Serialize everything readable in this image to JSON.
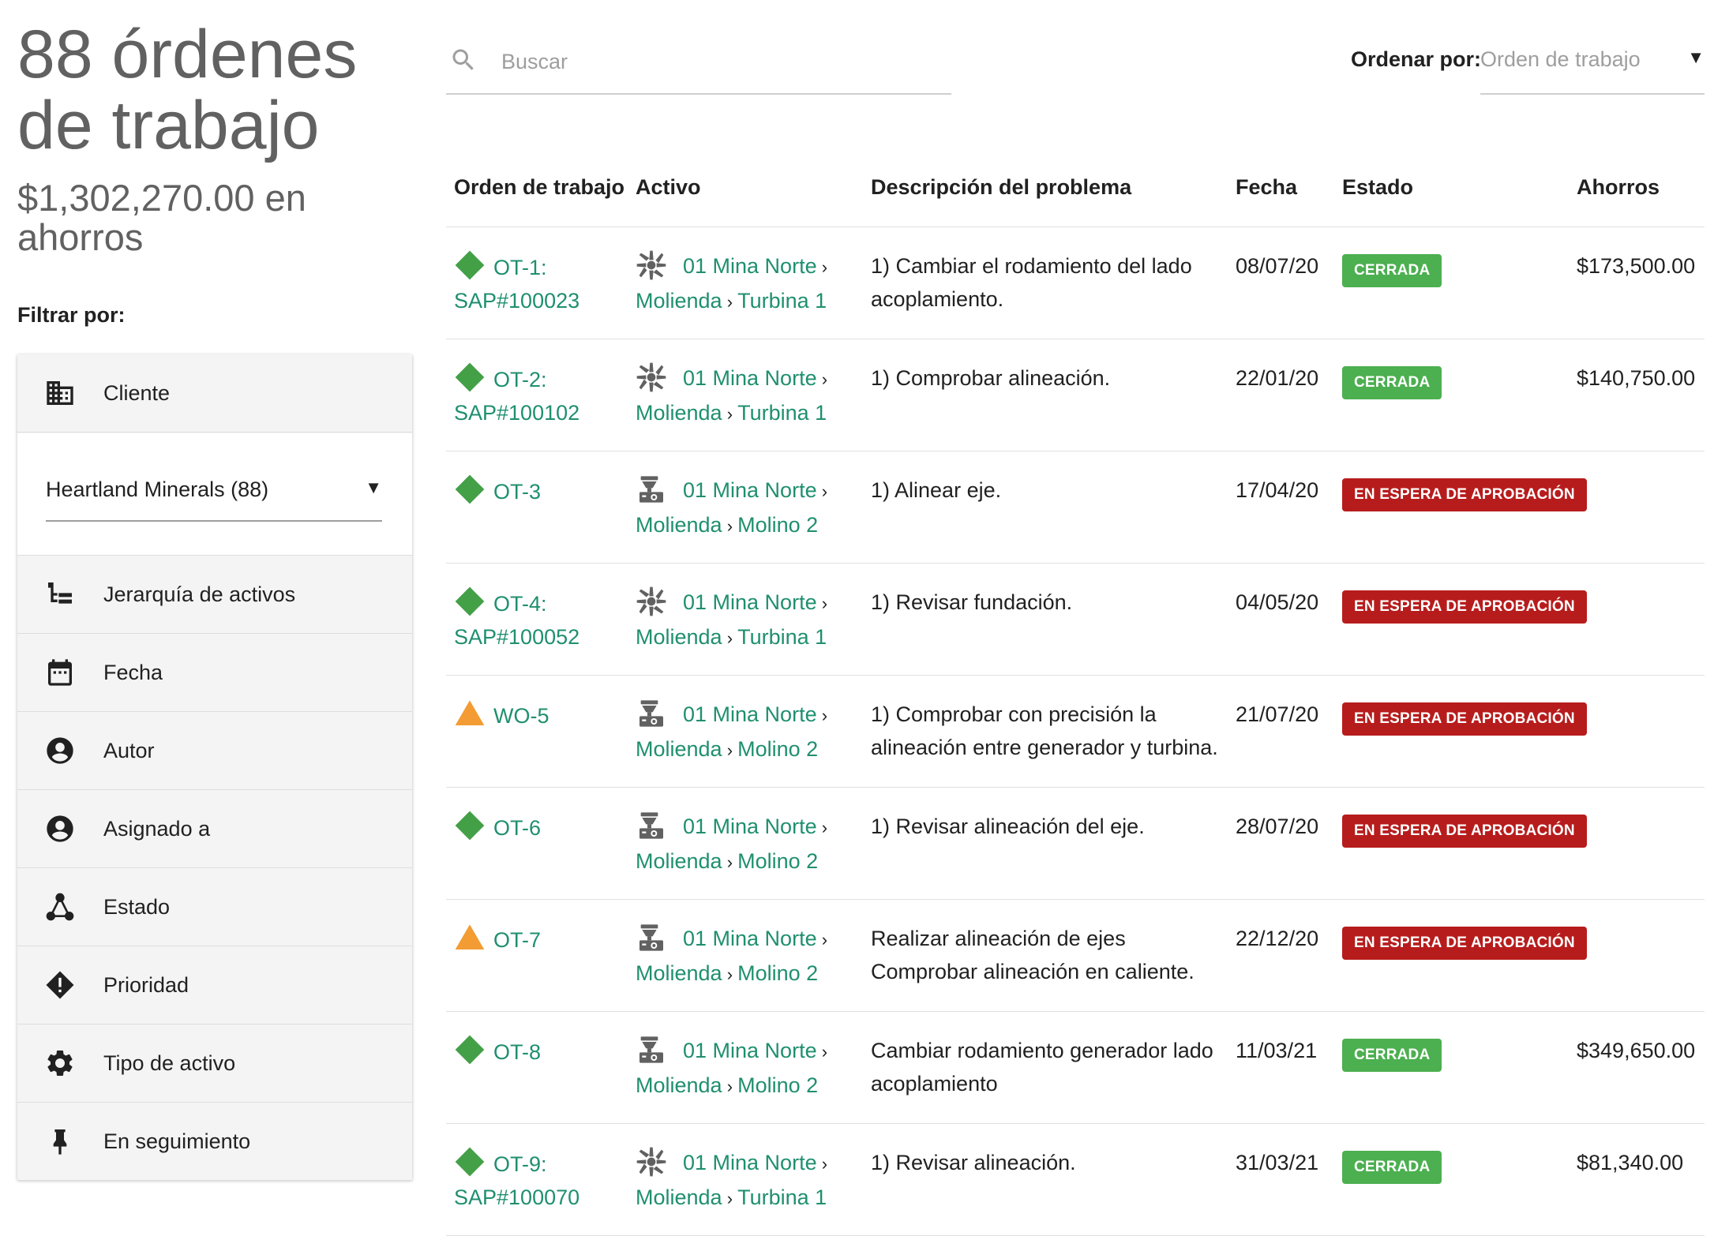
{
  "header": {
    "count_title": "88 órdenes de trabajo",
    "savings_title": "$1,302,270.00 en ahorros",
    "filter_label": "Filtrar por:"
  },
  "filters": {
    "client_label": "Cliente",
    "client_value": "Heartland Minerals (88)",
    "items": [
      {
        "label": "Jerarquía de activos",
        "icon": "hierarchy-icon"
      },
      {
        "label": "Fecha",
        "icon": "calendar-icon"
      },
      {
        "label": "Autor",
        "icon": "account-circle-icon"
      },
      {
        "label": "Asignado a",
        "icon": "account-circle-icon"
      },
      {
        "label": "Estado",
        "icon": "state-graph-icon"
      },
      {
        "label": "Prioridad",
        "icon": "priority-diamond-icon"
      },
      {
        "label": "Tipo de activo",
        "icon": "gear-icon"
      },
      {
        "label": "En seguimiento",
        "icon": "pin-icon"
      }
    ]
  },
  "search": {
    "placeholder": "Buscar"
  },
  "sort": {
    "label": "Ordenar por:",
    "value": "Orden de trabajo"
  },
  "table": {
    "headers": {
      "order": "Orden de trabajo",
      "asset": "Activo",
      "description": "Descripción del problema",
      "date": "Fecha",
      "status": "Estado",
      "savings": "Ahorros"
    },
    "rows": [
      {
        "order_id": "OT-1:",
        "sap": "SAP#100023",
        "priority": "3",
        "priority_color": "#43a047",
        "asset_icon": "turbine-icon",
        "asset_line1": "01 Mina Norte",
        "asset_area": "Molienda",
        "asset_name": "Turbina 1",
        "description": "1) Cambiar el rodamiento del lado acoplamiento.",
        "date": "08/07/20",
        "status": "CERRADA",
        "status_kind": "closed",
        "savings": "$173,500.00"
      },
      {
        "order_id": "OT-2:",
        "sap": "SAP#100102",
        "priority": "3",
        "priority_color": "#43a047",
        "asset_icon": "turbine-icon",
        "asset_line1": "01 Mina Norte",
        "asset_area": "Molienda",
        "asset_name": "Turbina 1",
        "description": "1) Comprobar alineación.",
        "date": "22/01/20",
        "status": "CERRADA",
        "status_kind": "closed",
        "savings": "$140,750.00"
      },
      {
        "order_id": "OT-3",
        "sap": "",
        "priority": "3",
        "priority_color": "#43a047",
        "asset_icon": "mill-icon",
        "asset_line1": "01 Mina Norte",
        "asset_area": "Molienda",
        "asset_name": "Molino 2",
        "description": "1) Alinear eje.",
        "date": "17/04/20",
        "status": "EN ESPERA DE APROBACIÓN",
        "status_kind": "waiting",
        "savings": ""
      },
      {
        "order_id": "OT-4:",
        "sap": "SAP#100052",
        "priority": "3",
        "priority_color": "#43a047",
        "asset_icon": "turbine-icon",
        "asset_line1": "01 Mina Norte",
        "asset_area": "Molienda",
        "asset_name": "Turbina 1",
        "description": "1) Revisar fundación.",
        "date": "04/05/20",
        "status": "EN ESPERA DE APROBACIÓN",
        "status_kind": "waiting",
        "savings": ""
      },
      {
        "order_id": "WO-5",
        "sap": "",
        "priority": "2",
        "priority_color": "#f39c34",
        "asset_icon": "mill-icon",
        "asset_line1": "01 Mina Norte",
        "asset_area": "Molienda",
        "asset_name": "Molino 2",
        "description": "1) Comprobar con precisión la alineación entre generador y turbina.",
        "date": "21/07/20",
        "status": "EN ESPERA DE APROBACIÓN",
        "status_kind": "waiting",
        "savings": ""
      },
      {
        "order_id": "OT-6",
        "sap": "",
        "priority": "3",
        "priority_color": "#43a047",
        "asset_icon": "mill-icon",
        "asset_line1": "01 Mina Norte",
        "asset_area": "Molienda",
        "asset_name": "Molino 2",
        "description": "1) Revisar alineación del eje.",
        "date": "28/07/20",
        "status": "EN ESPERA DE APROBACIÓN",
        "status_kind": "waiting",
        "savings": ""
      },
      {
        "order_id": "OT-7",
        "sap": "",
        "priority": "2",
        "priority_color": "#f39c34",
        "asset_icon": "mill-icon",
        "asset_line1": "01 Mina Norte",
        "asset_area": "Molienda",
        "asset_name": "Molino 2",
        "description": "Realizar alineación de ejes Comprobar alineación en caliente.",
        "date": "22/12/20",
        "status": "EN ESPERA DE APROBACIÓN",
        "status_kind": "waiting",
        "savings": ""
      },
      {
        "order_id": "OT-8",
        "sap": "",
        "priority": "3",
        "priority_color": "#43a047",
        "asset_icon": "mill-icon",
        "asset_line1": "01 Mina Norte",
        "asset_area": "Molienda",
        "asset_name": "Molino 2",
        "description": "Cambiar rodamiento generador lado acoplamiento",
        "date": "11/03/21",
        "status": "CERRADA",
        "status_kind": "closed",
        "savings": "$349,650.00"
      },
      {
        "order_id": "OT-9:",
        "sap": "SAP#100070",
        "priority": "3",
        "priority_color": "#43a047",
        "asset_icon": "turbine-icon",
        "asset_line1": "01 Mina Norte",
        "asset_area": "Molienda",
        "asset_name": "Turbina 1",
        "description": "1) Revisar alineación.",
        "date": "31/03/21",
        "status": "CERRADA",
        "status_kind": "closed",
        "savings": "$81,340.00"
      }
    ]
  }
}
